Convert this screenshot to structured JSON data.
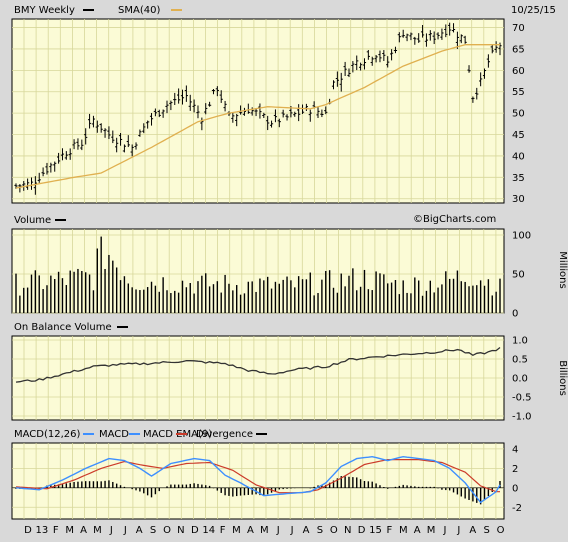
{
  "header": {
    "ticker_label": "BMY Weekly",
    "sma_label": "SMA(40)",
    "date": "10/25/15",
    "watermark": "©BigCharts.com"
  },
  "colors": {
    "background": "#d9d9d9",
    "plot_bg": "#fbfbd6",
    "grid": "#d7d79a",
    "price_bars": "#000000",
    "sma": "#e0b050",
    "macd": "#3d8fff",
    "macd_ema": "#cc3b2a",
    "divergence": "#000000"
  },
  "panels": {
    "volume_title": "Volume",
    "volume_unit": "Millions",
    "obv_title": "On Balance Volume",
    "obv_unit": "Billions",
    "macd_title": "MACD(12,26)",
    "macd_legend": "MACD",
    "ema_legend": "MACD EMA(9)",
    "divergence_legend": "Divergence"
  },
  "chart_data": [
    {
      "type": "bar",
      "subtype": "ohlc",
      "title": "BMY Weekly",
      "series_name": "BMY Weekly",
      "overlay": "SMA(40)",
      "y_ticks": [
        "30",
        "35",
        "40",
        "45",
        "50",
        "55",
        "60",
        "65",
        "70"
      ],
      "ylim": [
        29,
        72
      ],
      "x_labels": [
        "D",
        "13",
        "F",
        "M",
        "A",
        "M",
        "J",
        "J",
        "A",
        "S",
        "O",
        "N",
        "D",
        "14",
        "F",
        "M",
        "A",
        "M",
        "J",
        "J",
        "A",
        "S",
        "O",
        "N",
        "D",
        "15",
        "F",
        "M",
        "A",
        "M",
        "J",
        "J",
        "A",
        "S",
        "O"
      ],
      "price_anchors": [
        [
          0,
          33
        ],
        [
          4,
          33.5
        ],
        [
          8,
          37
        ],
        [
          13,
          41
        ],
        [
          17,
          43
        ],
        [
          20,
          48.5
        ],
        [
          24,
          45
        ],
        [
          30,
          42
        ],
        [
          34,
          48
        ],
        [
          39,
          52
        ],
        [
          44,
          54
        ],
        [
          48,
          49
        ],
        [
          52,
          56
        ],
        [
          55,
          49
        ],
        [
          60,
          51
        ],
        [
          66,
          48
        ],
        [
          70,
          49
        ],
        [
          76,
          51
        ],
        [
          80,
          50
        ],
        [
          82,
          57
        ],
        [
          88,
          62
        ],
        [
          93,
          64
        ],
        [
          96,
          62
        ],
        [
          100,
          69
        ],
        [
          104,
          67
        ],
        [
          108,
          68
        ],
        [
          112,
          70
        ],
        [
          116,
          67
        ],
        [
          118,
          54
        ],
        [
          120,
          57
        ],
        [
          122,
          62
        ],
        [
          124,
          65
        ],
        [
          125,
          66
        ]
      ],
      "sma_anchors": [
        [
          0,
          32.5
        ],
        [
          15,
          35
        ],
        [
          22,
          36
        ],
        [
          35,
          42
        ],
        [
          47,
          48
        ],
        [
          55,
          50
        ],
        [
          65,
          51.5
        ],
        [
          76,
          51
        ],
        [
          80,
          52
        ],
        [
          90,
          56
        ],
        [
          100,
          61
        ],
        [
          110,
          64.5
        ],
        [
          116,
          66
        ],
        [
          125,
          66
        ]
      ],
      "grid": true
    },
    {
      "type": "bar",
      "title": "Volume",
      "unit": "Millions",
      "y_ticks": [
        "0",
        "50",
        "100"
      ],
      "ylim": [
        0,
        100
      ],
      "volume_anchors": [
        [
          0,
          40
        ],
        [
          20,
          50
        ],
        [
          22,
          95
        ],
        [
          30,
          45
        ],
        [
          50,
          40
        ],
        [
          70,
          38
        ],
        [
          80,
          42
        ],
        [
          90,
          48
        ],
        [
          100,
          38
        ],
        [
          110,
          42
        ],
        [
          118,
          55
        ],
        [
          125,
          35
        ]
      ],
      "grid": true
    },
    {
      "type": "line",
      "title": "On Balance Volume",
      "unit": "Billions",
      "y_ticks": [
        "-1.0",
        "-0.5",
        "0.0",
        "0.5",
        "1.0"
      ],
      "ylim": [
        -1.0,
        1.0
      ],
      "obv_anchors": [
        [
          0,
          -0.1
        ],
        [
          6,
          -0.05
        ],
        [
          12,
          0.1
        ],
        [
          20,
          0.3
        ],
        [
          26,
          0.35
        ],
        [
          34,
          0.38
        ],
        [
          44,
          0.45
        ],
        [
          54,
          0.38
        ],
        [
          60,
          0.2
        ],
        [
          66,
          0.1
        ],
        [
          72,
          0.22
        ],
        [
          80,
          0.3
        ],
        [
          86,
          0.48
        ],
        [
          92,
          0.55
        ],
        [
          100,
          0.62
        ],
        [
          108,
          0.68
        ],
        [
          114,
          0.75
        ],
        [
          118,
          0.6
        ],
        [
          122,
          0.68
        ],
        [
          125,
          0.78
        ]
      ],
      "grid": true
    },
    {
      "type": "line",
      "title": "MACD(12,26)",
      "series": [
        {
          "name": "MACD"
        },
        {
          "name": "MACD EMA(9)"
        },
        {
          "name": "Divergence"
        }
      ],
      "y_ticks": [
        "-2",
        "0",
        "2",
        "4"
      ],
      "ylim": [
        -3,
        4.4
      ],
      "macd_anchors": [
        [
          0,
          0.0
        ],
        [
          6,
          -0.2
        ],
        [
          12,
          0.8
        ],
        [
          18,
          2.0
        ],
        [
          24,
          3.0
        ],
        [
          28,
          2.8
        ],
        [
          32,
          2.0
        ],
        [
          35,
          1.2
        ],
        [
          40,
          2.5
        ],
        [
          46,
          3.0
        ],
        [
          50,
          2.8
        ],
        [
          54,
          1.3
        ],
        [
          58,
          0.5
        ],
        [
          64,
          -0.8
        ],
        [
          70,
          -0.6
        ],
        [
          76,
          -0.4
        ],
        [
          80,
          0.5
        ],
        [
          84,
          2.2
        ],
        [
          88,
          3.0
        ],
        [
          92,
          3.2
        ],
        [
          96,
          2.8
        ],
        [
          100,
          3.2
        ],
        [
          104,
          3.0
        ],
        [
          108,
          2.8
        ],
        [
          112,
          2.0
        ],
        [
          116,
          0.5
        ],
        [
          120,
          -1.5
        ],
        [
          124,
          -0.4
        ],
        [
          125,
          0.3
        ]
      ],
      "ema_anchors": [
        [
          0,
          0.1
        ],
        [
          8,
          -0.1
        ],
        [
          15,
          0.8
        ],
        [
          22,
          2.0
        ],
        [
          28,
          2.7
        ],
        [
          33,
          2.3
        ],
        [
          38,
          2.0
        ],
        [
          44,
          2.5
        ],
        [
          50,
          2.6
        ],
        [
          56,
          1.8
        ],
        [
          62,
          0.3
        ],
        [
          68,
          -0.5
        ],
        [
          74,
          -0.5
        ],
        [
          78,
          -0.2
        ],
        [
          84,
          1.0
        ],
        [
          90,
          2.4
        ],
        [
          96,
          2.9
        ],
        [
          104,
          2.9
        ],
        [
          110,
          2.6
        ],
        [
          116,
          1.6
        ],
        [
          120,
          0.2
        ],
        [
          124,
          -0.4
        ],
        [
          125,
          -0.4
        ]
      ],
      "grid": true
    }
  ]
}
